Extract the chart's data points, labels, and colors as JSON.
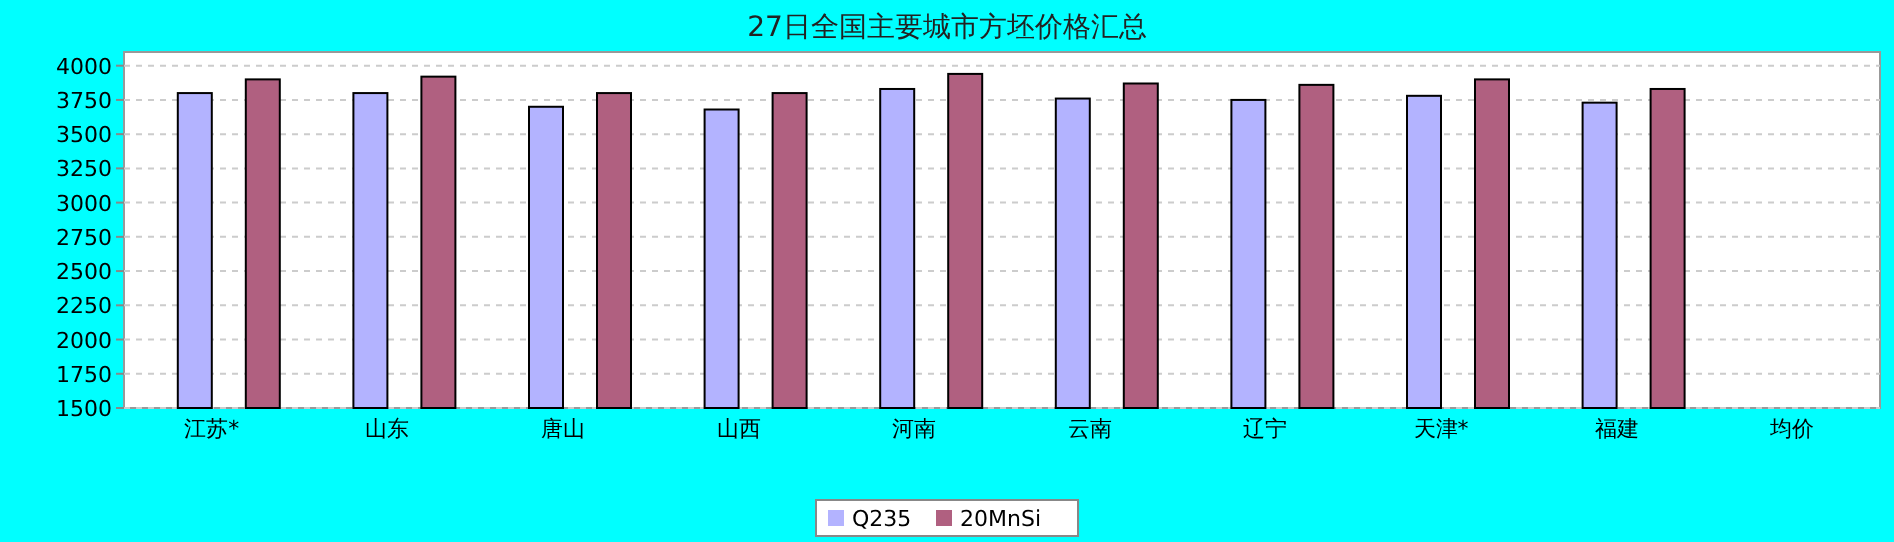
{
  "chart_data": {
    "type": "bar",
    "title": "27日全国主要城市方坯价格汇总",
    "categories": [
      "江苏*",
      "山东",
      "唐山",
      "山西",
      "河南",
      "云南",
      "辽宁",
      "天津*",
      "福建",
      "均价"
    ],
    "series": [
      {
        "name": "Q235",
        "color": "#b3b3ff",
        "values": [
          3800,
          3800,
          3700,
          3680,
          3830,
          3760,
          3750,
          3780,
          3730,
          null
        ]
      },
      {
        "name": "20MnSi",
        "color": "#b06080",
        "values": [
          3900,
          3920,
          3800,
          3800,
          3940,
          3870,
          3860,
          3900,
          3830,
          null
        ]
      }
    ],
    "ylim": [
      1500,
      4100
    ],
    "yticks": [
      1500,
      1750,
      2000,
      2250,
      2500,
      2750,
      3000,
      3250,
      3500,
      3750,
      4000
    ],
    "grid": "y",
    "legend": "bottom"
  }
}
